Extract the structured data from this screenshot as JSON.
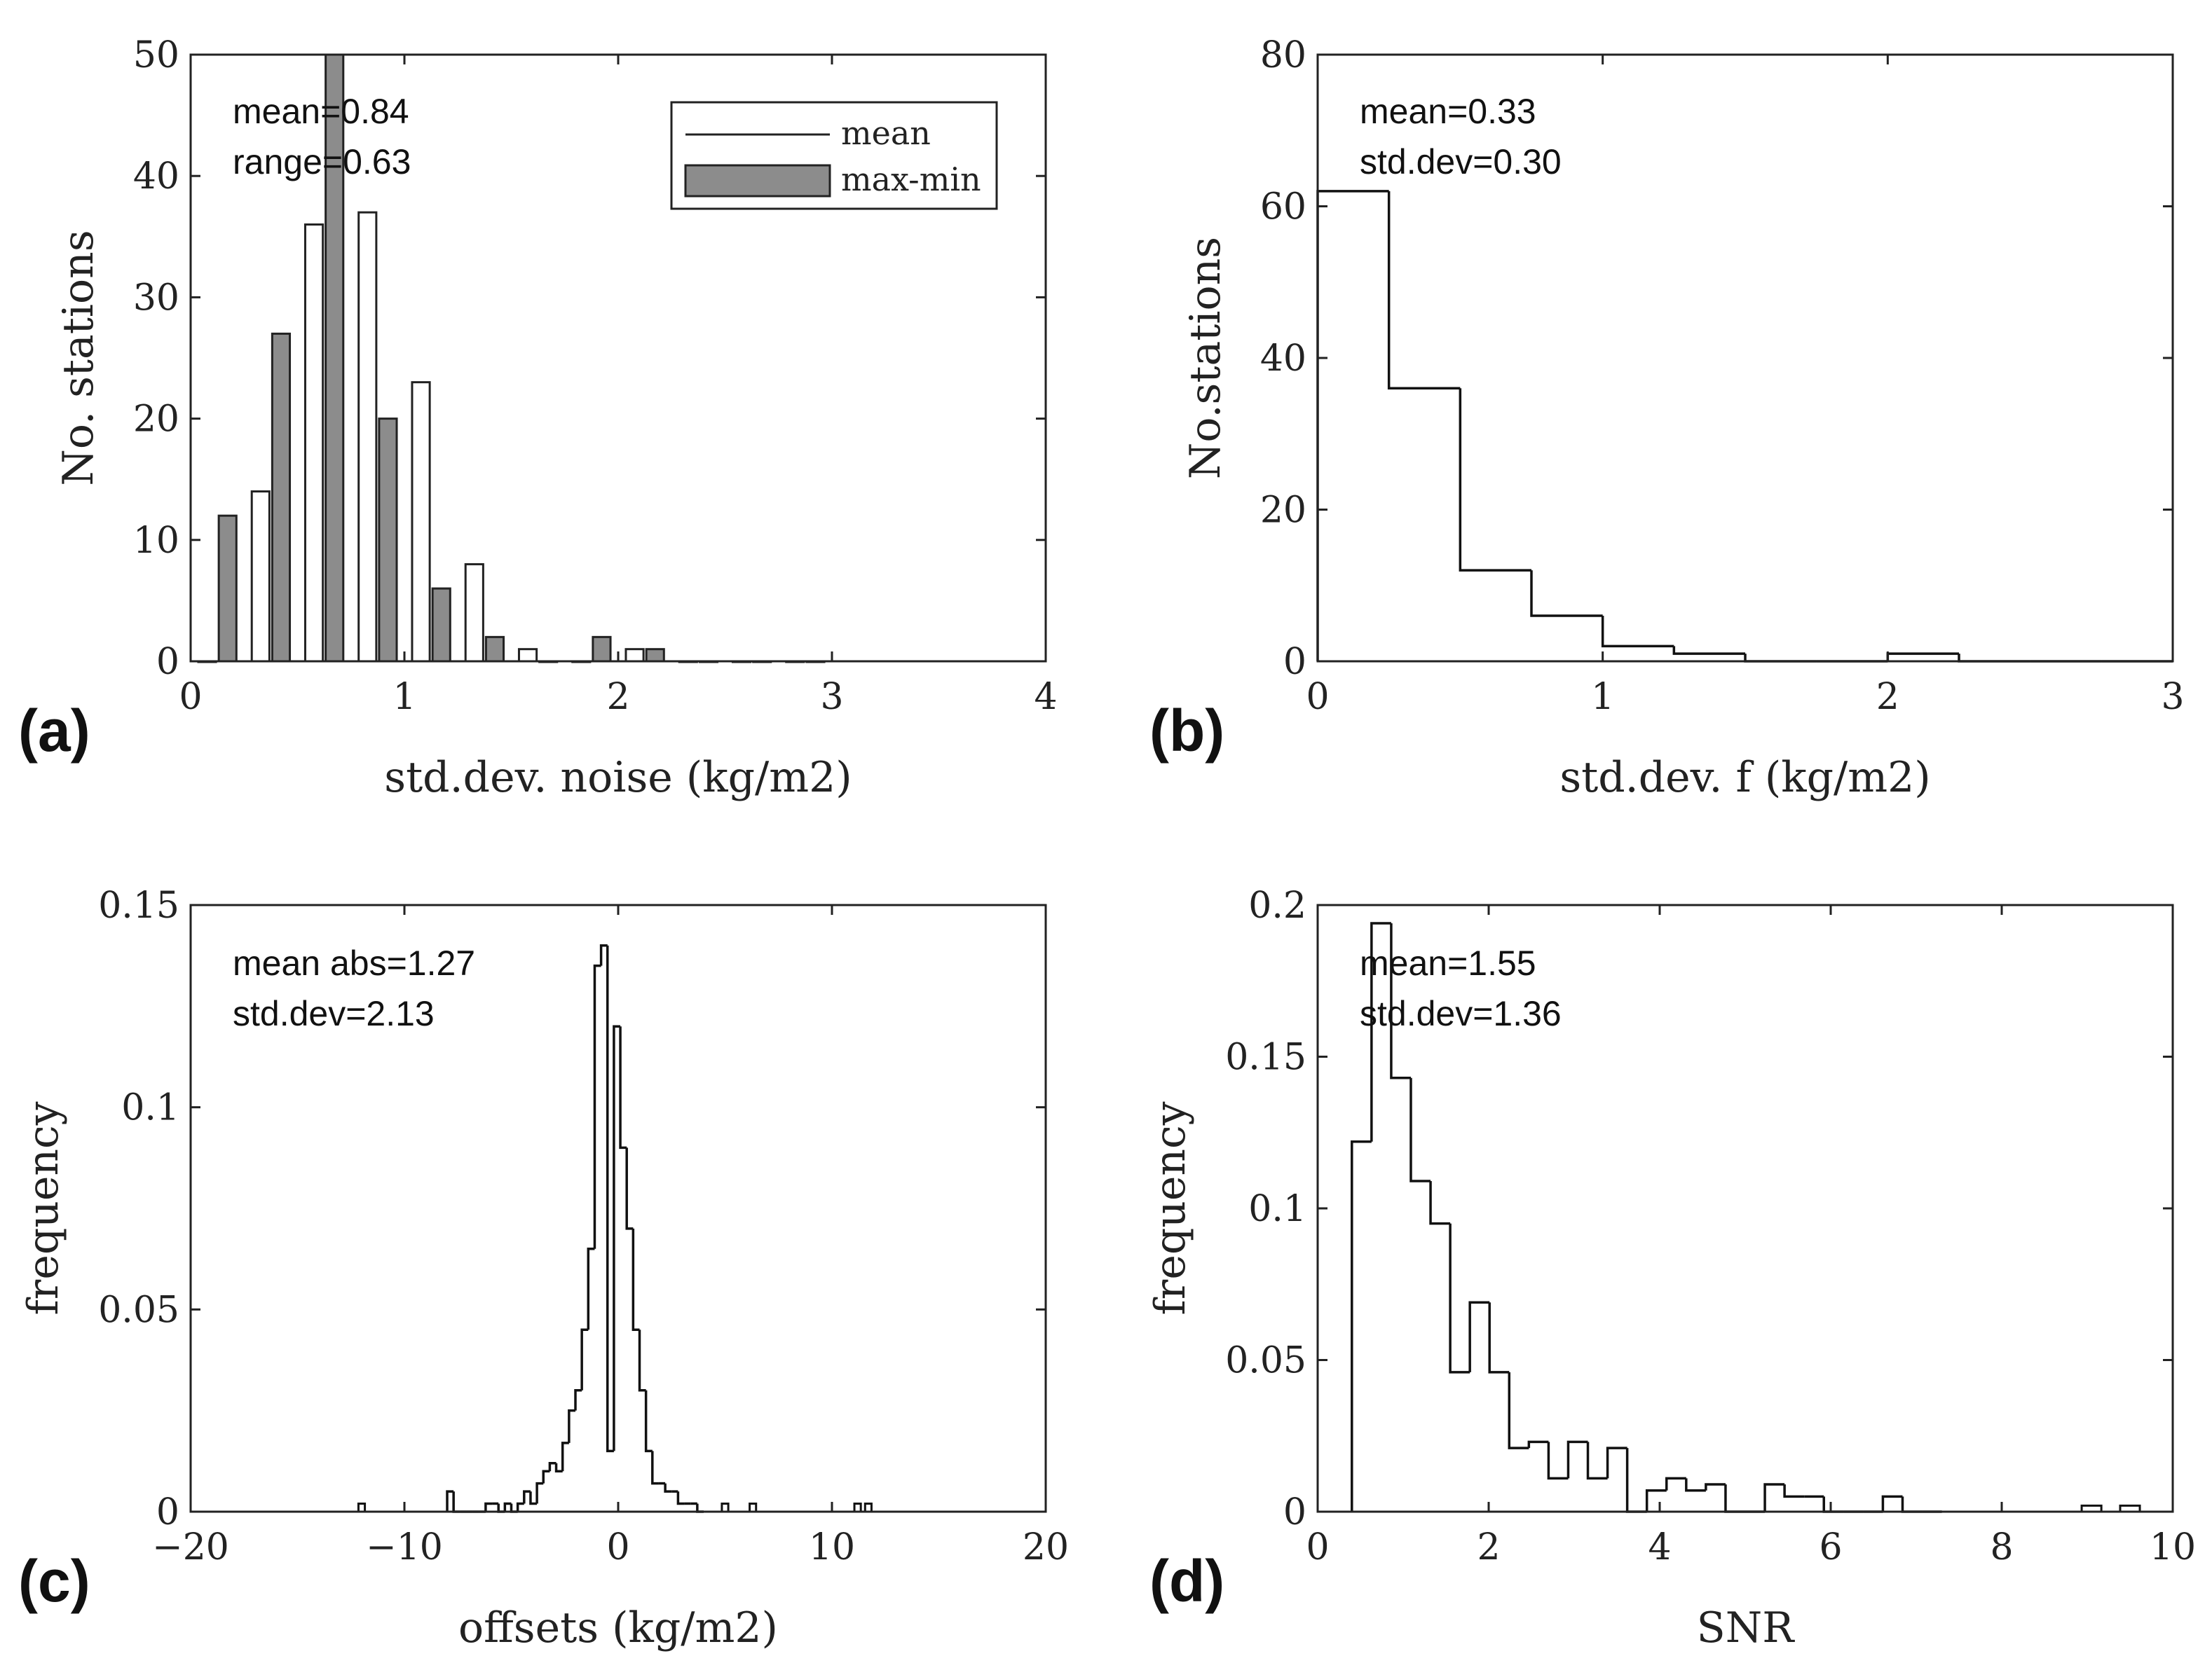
{
  "chart_data": [
    {
      "panel": "(a)",
      "type": "bar",
      "xlabel": "std.dev. noise (kg/m2)",
      "ylabel": "No. stations",
      "xlim": [
        0,
        4
      ],
      "ylim": [
        0,
        50
      ],
      "xticks": [
        "0",
        "1",
        "2",
        "3",
        "4"
      ],
      "yticks": [
        "0",
        "10",
        "20",
        "30",
        "40",
        "50"
      ],
      "bin_centers": [
        0.125,
        0.375,
        0.625,
        0.875,
        1.125,
        1.375,
        1.625,
        1.875,
        2.125,
        2.375,
        2.625,
        2.875
      ],
      "series": [
        {
          "name": "mean",
          "values": [
            0,
            14,
            36,
            37,
            23,
            8,
            1,
            0,
            1,
            0,
            0,
            0
          ],
          "color": "#ffffff"
        },
        {
          "name": "max-min",
          "values": [
            12,
            27,
            50,
            20,
            6,
            2,
            0,
            2,
            1,
            0,
            0,
            0
          ],
          "color": "#8c8c8c"
        }
      ],
      "legend": [
        "mean",
        "max-min"
      ],
      "legend_position": "top-right",
      "annotations": [
        "mean=0.84",
        "range=0.63"
      ]
    },
    {
      "panel": "(b)",
      "type": "histogram",
      "xlabel": "std.dev. f (kg/m2)",
      "ylabel": "No.stations",
      "xlim": [
        0,
        3
      ],
      "ylim": [
        0,
        80
      ],
      "xticks": [
        "0",
        "1",
        "2",
        "3"
      ],
      "yticks": [
        "0",
        "20",
        "40",
        "60",
        "80"
      ],
      "bin_edges": [
        0,
        0.25,
        0.5,
        0.75,
        1.0,
        1.25,
        1.5,
        1.75,
        2.0,
        2.25,
        2.5,
        2.75,
        3.0
      ],
      "values": [
        62,
        36,
        12,
        6,
        2,
        1,
        0,
        0,
        1,
        0,
        0,
        0
      ],
      "annotations": [
        "mean=0.33",
        "std.dev=0.30"
      ]
    },
    {
      "panel": "(c)",
      "type": "histogram",
      "xlabel": "offsets (kg/m2)",
      "ylabel": "frequency",
      "xlim": [
        -20,
        20
      ],
      "ylim": [
        0,
        0.15
      ],
      "xticks": [
        "−20",
        "−10",
        "0",
        "10",
        "20"
      ],
      "yticks": [
        "0",
        "0.05",
        "0.1",
        "0.15"
      ],
      "bin_edges": [
        -8,
        -7.7,
        -7.4,
        -7.1,
        -6.8,
        -6.5,
        -6.2,
        -5.9,
        -5.6,
        -5.3,
        -5,
        -4.7,
        -4.4,
        -4.1,
        -3.8,
        -3.5,
        -3.2,
        -2.9,
        -2.6,
        -2.3,
        -2,
        -1.7,
        -1.4,
        -1.1,
        -0.8,
        -0.5,
        -0.2,
        0.1,
        0.4,
        0.7,
        1.0,
        1.3,
        1.6,
        1.9,
        2.2,
        2.5,
        2.8,
        3.1,
        3.4,
        3.7,
        4.0
      ],
      "values": [
        0.005,
        0,
        0,
        0,
        0,
        0,
        0.002,
        0.002,
        0,
        0.002,
        0,
        0.002,
        0.005,
        0.002,
        0.007,
        0.01,
        0.012,
        0.01,
        0.017,
        0.025,
        0.03,
        0.045,
        0.065,
        0.135,
        0.14,
        0.015,
        0.12,
        0.09,
        0.07,
        0.045,
        0.03,
        0.015,
        0.007,
        0.007,
        0.005,
        0.005,
        0.002,
        0.002,
        0.002,
        0
      ],
      "outliers": [
        {
          "x": -12,
          "value": 0.002
        },
        {
          "x": 5.0,
          "value": 0.002
        },
        {
          "x": 6.3,
          "value": 0.002
        },
        {
          "x": 11.2,
          "value": 0.002
        },
        {
          "x": 11.7,
          "value": 0.002
        }
      ],
      "annotations": [
        "mean abs=1.27",
        "std.dev=2.13"
      ]
    },
    {
      "panel": "(d)",
      "type": "histogram",
      "xlabel": "SNR",
      "ylabel": "frequency",
      "xlim": [
        0,
        10
      ],
      "ylim": [
        0,
        0.2
      ],
      "xticks": [
        "0",
        "2",
        "4",
        "6",
        "8",
        "10"
      ],
      "yticks": [
        "0",
        "0.05",
        "0.1",
        "0.15",
        "0.2"
      ],
      "bin_edges": [
        0.4,
        0.63,
        0.86,
        1.09,
        1.32,
        1.55,
        1.78,
        2.01,
        2.24,
        2.47,
        2.7,
        2.93,
        3.16,
        3.39,
        3.62,
        3.85,
        4.08,
        4.31,
        4.54,
        4.77,
        5.0,
        5.23,
        5.46,
        5.69,
        5.92,
        6.15,
        6.38,
        6.61,
        6.84,
        7.07,
        7.3
      ],
      "values": [
        0.122,
        0.194,
        0.143,
        0.109,
        0.095,
        0.046,
        0.069,
        0.046,
        0.021,
        0.023,
        0.011,
        0.023,
        0.011,
        0.021,
        0,
        0.007,
        0.011,
        0.007,
        0.009,
        0,
        0,
        0.009,
        0.005,
        0.005,
        0,
        0,
        0,
        0.005,
        0,
        0
      ],
      "outliers": [
        {
          "x": 9.05,
          "value": 0.002
        },
        {
          "x": 9.5,
          "value": 0.002
        }
      ],
      "annotations": [
        "mean=1.55",
        "std.dev=1.36"
      ]
    }
  ]
}
